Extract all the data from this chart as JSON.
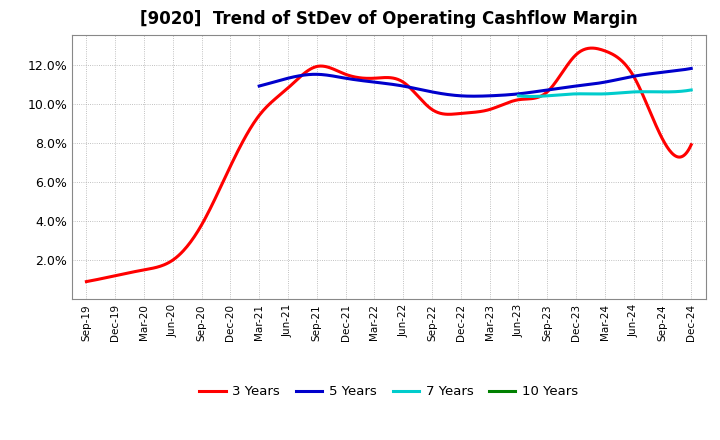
{
  "title": "[9020]  Trend of StDev of Operating Cashflow Margin",
  "title_fontsize": 12,
  "background_color": "#ffffff",
  "plot_bg_color": "#ffffff",
  "grid_color": "#999999",
  "ylim": [
    0.0,
    0.135
  ],
  "yticks": [
    0.02,
    0.04,
    0.06,
    0.08,
    0.1,
    0.12
  ],
  "legend_entries": [
    "3 Years",
    "5 Years",
    "7 Years",
    "10 Years"
  ],
  "legend_colors": [
    "#ff0000",
    "#0000cc",
    "#00cccc",
    "#008000"
  ],
  "x_labels": [
    "Sep-19",
    "Dec-19",
    "Mar-20",
    "Jun-20",
    "Sep-20",
    "Dec-20",
    "Mar-21",
    "Jun-21",
    "Sep-21",
    "Dec-21",
    "Mar-22",
    "Jun-22",
    "Sep-22",
    "Dec-22",
    "Mar-23",
    "Jun-23",
    "Sep-23",
    "Dec-23",
    "Mar-24",
    "Jun-24",
    "Sep-24",
    "Dec-24"
  ],
  "series_3y_x": [
    0,
    1,
    2,
    3,
    4,
    5,
    6,
    7,
    8,
    9,
    10,
    11,
    12,
    13,
    14,
    15,
    16,
    17,
    18,
    19,
    20,
    21
  ],
  "series_3y_y": [
    0.009,
    0.012,
    0.015,
    0.02,
    0.038,
    0.068,
    0.094,
    0.108,
    0.119,
    0.115,
    0.113,
    0.111,
    0.097,
    0.095,
    0.097,
    0.102,
    0.106,
    0.125,
    0.127,
    0.114,
    0.082,
    0.079
  ],
  "series_5y_x": [
    6,
    7,
    8,
    9,
    10,
    11,
    12,
    13,
    14,
    15,
    16,
    17,
    18,
    19,
    20,
    21
  ],
  "series_5y_y": [
    0.109,
    0.113,
    0.115,
    0.113,
    0.111,
    0.109,
    0.106,
    0.104,
    0.104,
    0.105,
    0.107,
    0.109,
    0.111,
    0.114,
    0.116,
    0.118
  ],
  "series_7y_x": [
    15,
    16,
    17,
    18,
    19,
    20,
    21
  ],
  "series_7y_y": [
    0.104,
    0.104,
    0.105,
    0.105,
    0.106,
    0.106,
    0.107
  ],
  "series_10y_x": [],
  "series_10y_y": []
}
